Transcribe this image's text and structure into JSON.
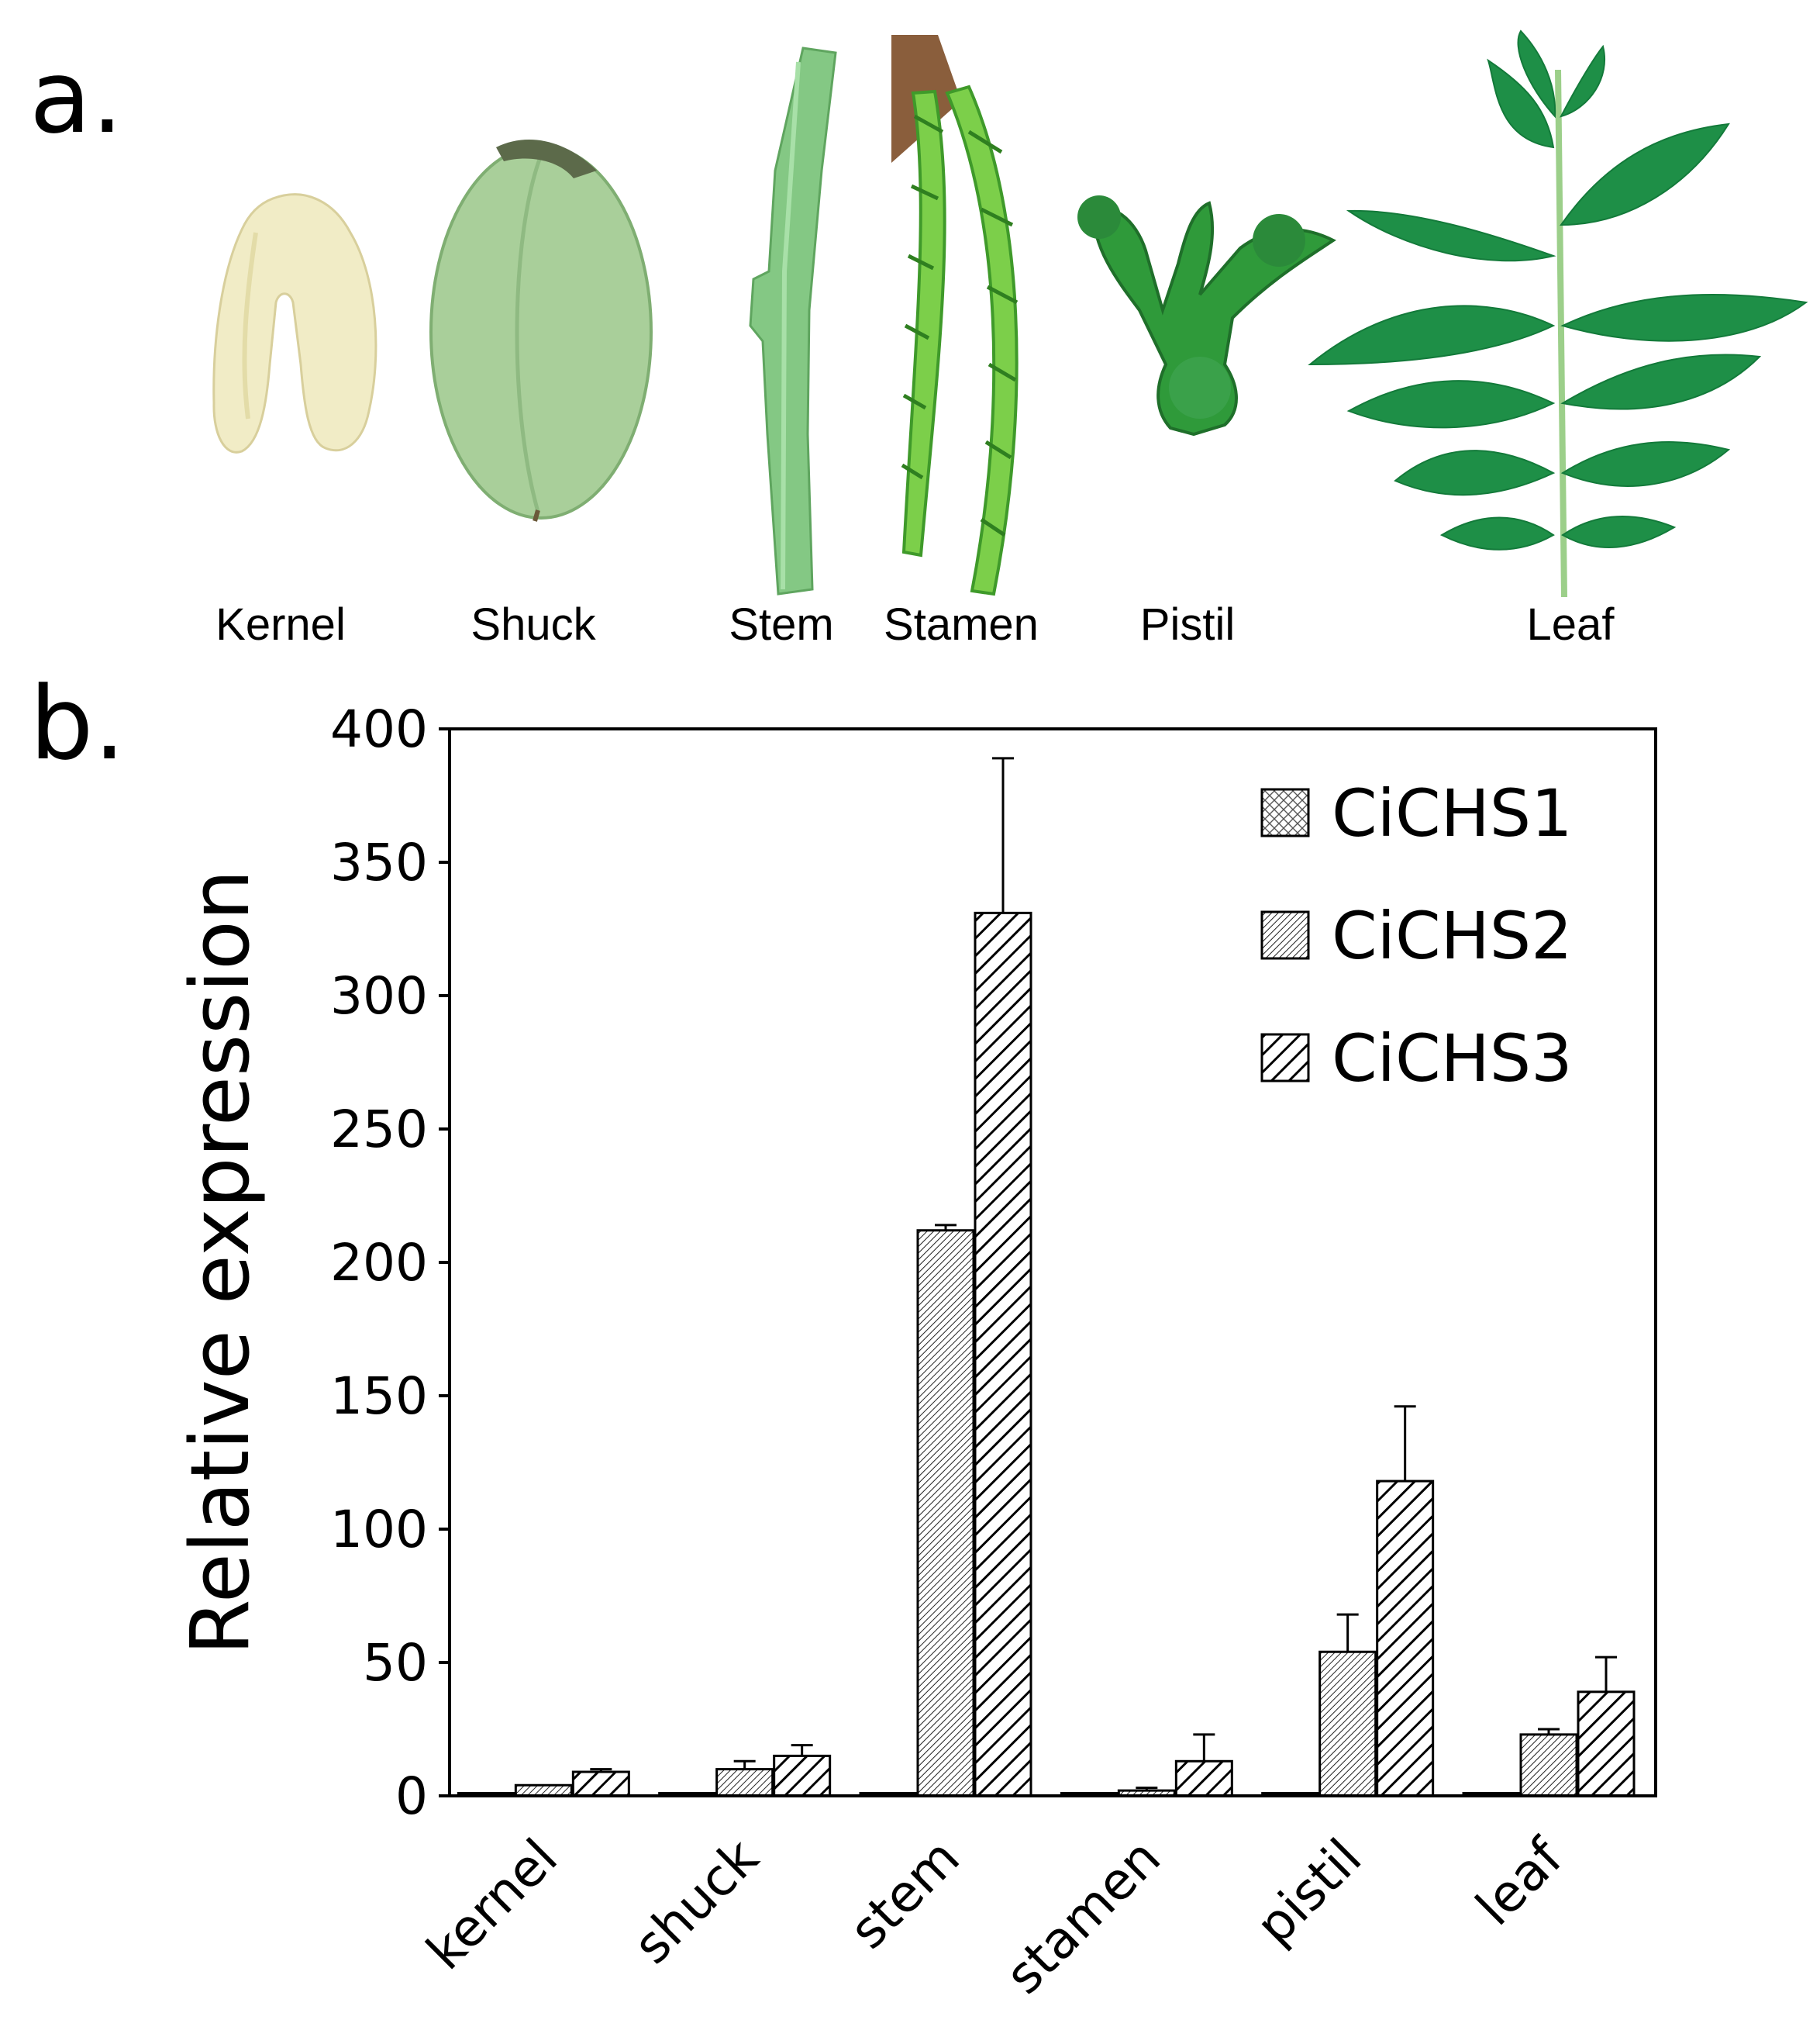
{
  "panels": {
    "a": "a.",
    "b": "b."
  },
  "tissue_photos": [
    {
      "label": "Kernel"
    },
    {
      "label": "Shuck"
    },
    {
      "label": "Stem"
    },
    {
      "label": "Stamen"
    },
    {
      "label": "Pistil"
    },
    {
      "label": "Leaf"
    }
  ],
  "colors": {
    "kernel": "#f1ecc6",
    "shuck": "#a9cf9a",
    "stem": "#84c884",
    "stamen": "#7ccf4a",
    "pistil": "#2f9a3a",
    "leaf": "#1e8f47"
  },
  "chart_data": {
    "type": "bar",
    "categories": [
      "kernel",
      "shuck",
      "stem",
      "stamen",
      "pistil",
      "leaf"
    ],
    "series": [
      {
        "name": "CiCHS1",
        "pattern": "crosshatch",
        "values": [
          1,
          1,
          1,
          1,
          1,
          1
        ],
        "errors": [
          0,
          0,
          0,
          0,
          0,
          0
        ]
      },
      {
        "name": "CiCHS2",
        "pattern": "fine-diagonal",
        "values": [
          4,
          10,
          212,
          2,
          54,
          23
        ],
        "errors": [
          0,
          3,
          2,
          1,
          14,
          2
        ]
      },
      {
        "name": "CiCHS3",
        "pattern": "wide-diagonal",
        "values": [
          9,
          15,
          331,
          13,
          118,
          39
        ],
        "errors": [
          1,
          4,
          58,
          10,
          28,
          13
        ]
      }
    ],
    "ylabel": "Relative expression",
    "xlabel": "",
    "ylim": [
      0,
      400
    ],
    "yticks": [
      0,
      50,
      100,
      150,
      200,
      250,
      300,
      350,
      400
    ],
    "legend_position": "top-right",
    "grid": false
  }
}
